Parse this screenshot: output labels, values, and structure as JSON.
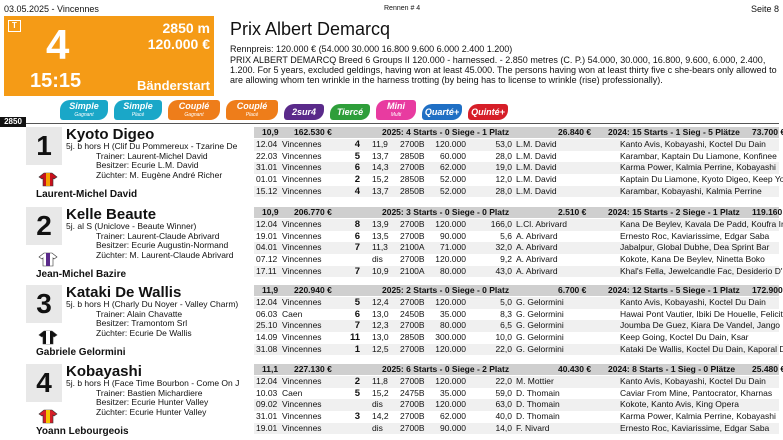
{
  "header": {
    "date_venue": "03.05.2025 - Vincennes",
    "rennen": "Rennen # 4",
    "page": "Seite 8"
  },
  "race_box": {
    "badge": "T",
    "number": "4",
    "distance": "2850 m",
    "prize": "120.000 €",
    "time": "15:15",
    "start_type": "Bänderstart"
  },
  "race": {
    "title": "Prix Albert Demarcq",
    "rennpreis": "Rennpreis: 120.000 € (54.000 30.000 16.800 9.600 6.000 2.400 1.200)",
    "description": "PRIX ALBERT DEMARCQ Breed 6 Groups II 120.000 - harnessed. - 2.850 metres (C. P.) 54.000, 30.000, 16.800, 9.600, 6.000, 2.400, 1.200. For 5 years, excluded geldings, having won at least 45.000. The persons having won at least thirty five c she-bears only allowed to are allowing whom ten wrinkle in the harness trotting (by being has to license to wrinkle (rise) professionally)."
  },
  "bets": [
    {
      "label": "Simple",
      "sub": "Gagnant",
      "color": "#1aa7c8"
    },
    {
      "label": "Simple",
      "sub": "Placé",
      "color": "#1aa7c8"
    },
    {
      "label": "Couplé",
      "sub": "Gagnant",
      "color": "#ee7d1a"
    },
    {
      "label": "Couplé",
      "sub": "Placé",
      "color": "#ee7d1a"
    },
    {
      "label": "2sur4",
      "sub": "",
      "color": "#5a2a8a"
    },
    {
      "label": "Tiercé",
      "sub": "",
      "color": "#2e9e3a"
    },
    {
      "label": "Mini",
      "sub": "Multi",
      "color": "#e83ba0"
    },
    {
      "label": "Quarté+",
      "sub": "",
      "color": "#1f6fc4"
    },
    {
      "label": "Quinté+",
      "sub": "",
      "color": "#d61e28"
    }
  ],
  "distance_marker": "2850",
  "horses": [
    {
      "number": "1",
      "name": "Kyoto Digeo",
      "pedigree": "5j. b hors H (Clif Du Pommereux - Tzarine De",
      "trainer": "Trainer: Laurent-Michel David",
      "owner": "Besitzer: Ecurie L.M. David",
      "breeder": "Züchter: M. Eugène André Richer",
      "jockey": "Laurent-Michel David",
      "stats": {
        "odds": "10,9",
        "earnings": "162.530 €",
        "y2025": "2025: 4 Starts - 0 Siege - 1 Platz",
        "e2025": "26.840 €",
        "y2024": "2024: 15 Starts - 1 Sieg - 5 Plätze",
        "e2024": "73.700 €"
      },
      "races": [
        {
          "date": "12.04",
          "venue": "Vincennes",
          "place": "4",
          "time": "11,9",
          "dist": "2700B",
          "prize": "120.000",
          "odds": "53,0",
          "jockey": "L.M. David",
          "result": "Kanto Avis, Kobayashi, Koctel Du Dain"
        },
        {
          "date": "22.03",
          "venue": "Vincennes",
          "place": "5",
          "time": "13,7",
          "dist": "2850B",
          "prize": "60.000",
          "odds": "28,0",
          "jockey": "L.M. David",
          "result": "Karambar, Kaptain Du Liamone, Konfinee"
        },
        {
          "date": "31.01",
          "venue": "Vincennes",
          "place": "6",
          "time": "14,3",
          "dist": "2700B",
          "prize": "62.000",
          "odds": "19,0",
          "jockey": "L.M. David",
          "result": "Karma Power, Kalmia Perrine, Kobayashi"
        },
        {
          "date": "01.01",
          "venue": "Vincennes",
          "place": "2",
          "time": "15,2",
          "dist": "2850B",
          "prize": "52.000",
          "odds": "12,0",
          "jockey": "L.M. David",
          "result": "Kaptain Du Liamone, Kyoto Digeo, Keep Yo"
        },
        {
          "date": "15.12",
          "venue": "Vincennes",
          "place": "4",
          "time": "13,7",
          "dist": "2850B",
          "prize": "52.000",
          "odds": "28,0",
          "jockey": "L.M. David",
          "result": "Karambar, Kobayashi, Kalmia Perrine"
        }
      ]
    },
    {
      "number": "2",
      "name": "Kelle Beaute",
      "pedigree": "5j. al S (Uniclove - Beaute Winner)",
      "trainer": "Trainer: Laurent-Claude Abrivard",
      "owner": "Besitzer: Ecurie Augustin-Normand",
      "breeder": "Züchter: M. Laurent-Claude Abrivard",
      "jockey": "Jean-Michel Bazire",
      "stats": {
        "odds": "10,9",
        "earnings": "206.770 €",
        "y2025": "2025: 3 Starts - 0 Siege - 0 Platz",
        "e2025": "2.510 €",
        "y2024": "2024: 15 Starts - 2 Siege - 1 Platz",
        "e2024": "119.160 €"
      },
      "races": [
        {
          "date": "12.04",
          "venue": "Vincennes",
          "place": "8",
          "time": "13,9",
          "dist": "2700B",
          "prize": "120.000",
          "odds": "166,0",
          "jockey": "L.Cl. Abrivard",
          "result": "Kana De Beylev, Kavala De Padd, Koufra Iri"
        },
        {
          "date": "19.01",
          "venue": "Vincennes",
          "place": "6",
          "time": "13,5",
          "dist": "2700B",
          "prize": "90.000",
          "odds": "5,6",
          "jockey": "A. Abrivard",
          "result": "Ernesto Roc, Kaviarissime, Edgar Saba"
        },
        {
          "date": "04.01",
          "venue": "Vincennes",
          "place": "7",
          "time": "11,3",
          "dist": "2100A",
          "prize": "71.000",
          "odds": "32,0",
          "jockey": "A. Abrivard",
          "result": "Jabalpur, Global Dubhe, Dea Sprint Bar"
        },
        {
          "date": "07.12",
          "venue": "Vincennes",
          "place": "",
          "time": "dis",
          "dist": "2700B",
          "prize": "120.000",
          "odds": "9,2",
          "jockey": "A. Abrivard",
          "result": "Kokote, Kana De Beylev, Ninetta Boko"
        },
        {
          "date": "17.11",
          "venue": "Vincennes",
          "place": "7",
          "time": "10,9",
          "dist": "2100A",
          "prize": "80.000",
          "odds": "43,0",
          "jockey": "A. Abrivard",
          "result": "Khal's Fella, Jewelcandle Fac, Desiderio D'"
        }
      ]
    },
    {
      "number": "3",
      "name": "Kataki De Wallis",
      "pedigree": "5j. b hors H (Charly Du Noyer - Valley Charm)",
      "trainer": "Trainer: Alain Chavatte",
      "owner": "Besitzer: Tramontom Srl",
      "breeder": "Züchter: Ecurie De Wallis",
      "jockey": "Gabriele Gelormini",
      "stats": {
        "odds": "11,9",
        "earnings": "220.940 €",
        "y2025": "2025: 2 Starts - 0 Siege - 0 Platz",
        "e2025": "6.700 €",
        "y2024": "2024: 12 Starts - 5 Siege - 1 Platz",
        "e2024": "172.900 €"
      },
      "races": [
        {
          "date": "12.04",
          "venue": "Vincennes",
          "place": "5",
          "time": "12,4",
          "dist": "2700B",
          "prize": "120.000",
          "odds": "5,0",
          "jockey": "G. Gelormini",
          "result": "Kanto Avis, Kobayashi, Koctel Du Dain"
        },
        {
          "date": "06.03",
          "venue": "Caen",
          "place": "6",
          "time": "13,0",
          "dist": "2450B",
          "prize": "35.000",
          "odds": "8,3",
          "jockey": "G. Gelormini",
          "result": "Hawai Pont Vautier, Ibiki De Houelle, Felicit"
        },
        {
          "date": "25.10",
          "venue": "Vincennes",
          "place": "7",
          "time": "12,3",
          "dist": "2700B",
          "prize": "80.000",
          "odds": "6,5",
          "jockey": "G. Gelormini",
          "result": "Joumba De Guez, Kiara De Vandel, Jango"
        },
        {
          "date": "14.09",
          "venue": "Vincennes",
          "place": "11",
          "time": "13,0",
          "dist": "2850B",
          "prize": "300.000",
          "odds": "10,0",
          "jockey": "G. Gelormini",
          "result": "Keep Going, Koctel Du Dain, Ksar"
        },
        {
          "date": "31.08",
          "venue": "Vincennes",
          "place": "1",
          "time": "12,5",
          "dist": "2700B",
          "prize": "120.000",
          "odds": "22,0",
          "jockey": "G. Gelormini",
          "result": "Kataki De Wallis, Koctel Du Dain, Kaporal D"
        }
      ]
    },
    {
      "number": "4",
      "name": "Kobayashi",
      "pedigree": "5j. b hors H (Face Time Bourbon - Come On J",
      "trainer": "Trainer: Bastien Michardiere",
      "owner": "Besitzer: Ecurie Hunter Valley",
      "breeder": "Züchter: Ecurie Hunter Valley",
      "jockey": "Yoann Lebourgeois",
      "stats": {
        "odds": "11,1",
        "earnings": "227.130 €",
        "y2025": "2025: 6 Starts - 0 Siege - 2 Platz",
        "e2025": "40.430 €",
        "y2024": "2024: 8 Starts - 1 Sieg - 0 Plätze",
        "e2024": "25.480 €"
      },
      "races": [
        {
          "date": "12.04",
          "venue": "Vincennes",
          "place": "2",
          "time": "11,8",
          "dist": "2700B",
          "prize": "120.000",
          "odds": "22,0",
          "jockey": "M. Mottier",
          "result": "Kanto Avis, Kobayashi, Koctel Du Dain"
        },
        {
          "date": "10.03",
          "venue": "Caen",
          "place": "5",
          "time": "15,2",
          "dist": "2475B",
          "prize": "35.000",
          "odds": "59,0",
          "jockey": "D. Thomain",
          "result": "Caviar From Mine, Pantocrator, Kharnas"
        },
        {
          "date": "09.02",
          "venue": "Vincennes",
          "place": "",
          "time": "dis",
          "dist": "2700B",
          "prize": "120.000",
          "odds": "63,0",
          "jockey": "D. Thomain",
          "result": "Kokote, Kanto Avis, King Opera"
        },
        {
          "date": "31.01",
          "venue": "Vincennes",
          "place": "3",
          "time": "14,2",
          "dist": "2700B",
          "prize": "62.000",
          "odds": "40,0",
          "jockey": "D. Thomain",
          "result": "Karma Power, Kalmia Perrine, Kobayashi"
        },
        {
          "date": "19.01",
          "venue": "Vincennes",
          "place": "",
          "time": "dis",
          "dist": "2700B",
          "prize": "90.000",
          "odds": "14,0",
          "jockey": "F. Nivard",
          "result": "Ernesto Roc, Kaviarissime, Edgar Saba"
        }
      ]
    }
  ]
}
